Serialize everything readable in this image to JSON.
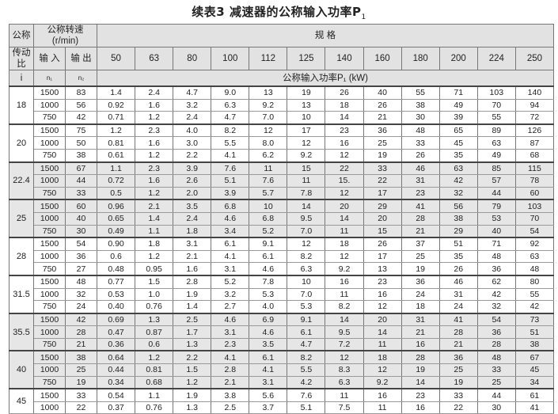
{
  "title": {
    "text": "续表3  减速器的公称输入功率P",
    "sub": "1"
  },
  "header": {
    "ratio_label_1": "公称",
    "ratio_label_2": "传动比",
    "ratio_label_3": "i",
    "speed_label": "公称转速(r/min)",
    "input_label": "输 入",
    "output_label": "输 出",
    "n1": "n₁",
    "n2": "n₂",
    "spec_label": "规    格",
    "power_label": "公称输入功率P₁ (kW)",
    "sizes": [
      "50",
      "63",
      "80",
      "100",
      "112",
      "125",
      "140",
      "160",
      "180",
      "200",
      "224",
      "250"
    ]
  },
  "groups": [
    {
      "ratio": "18",
      "shaded": false,
      "rows": [
        {
          "n1": "1500",
          "n2": "83",
          "p": [
            "1.4",
            "2.4",
            "4.7",
            "9.0",
            "13",
            "19",
            "26",
            "40",
            "55",
            "71",
            "103",
            "140"
          ]
        },
        {
          "n1": "1000",
          "n2": "56",
          "p": [
            "0.92",
            "1.6",
            "3.2",
            "6.3",
            "9.2",
            "13",
            "18",
            "26",
            "38",
            "49",
            "70",
            "94"
          ]
        },
        {
          "n1": "750",
          "n2": "42",
          "p": [
            "0.71",
            "1.2",
            "2.4",
            "4.7",
            "7.0",
            "10",
            "14",
            "21",
            "30",
            "39",
            "55",
            "72"
          ]
        }
      ]
    },
    {
      "ratio": "20",
      "shaded": false,
      "rows": [
        {
          "n1": "1500",
          "n2": "75",
          "p": [
            "1.2",
            "2.3",
            "4.0",
            "8.2",
            "12",
            "17",
            "23",
            "36",
            "48",
            "65",
            "89",
            "126"
          ]
        },
        {
          "n1": "1000",
          "n2": "50",
          "p": [
            "0.81",
            "1.6",
            "3.0",
            "5.5",
            "8.0",
            "12",
            "16",
            "25",
            "33",
            "45",
            "63",
            "87"
          ]
        },
        {
          "n1": "750",
          "n2": "38",
          "p": [
            "0.61",
            "1.2",
            "2.2",
            "4.1",
            "6.2",
            "9.2",
            "12",
            "19",
            "26",
            "35",
            "49",
            "68"
          ]
        }
      ]
    },
    {
      "ratio": "22.4",
      "shaded": true,
      "rows": [
        {
          "n1": "1500",
          "n2": "67",
          "p": [
            "1.1",
            "2.3",
            "3.9",
            "7.6",
            "11",
            "15",
            "22",
            "33",
            "46",
            "63",
            "85",
            "115"
          ]
        },
        {
          "n1": "1000",
          "n2": "44",
          "p": [
            "0.72",
            "1.6",
            "2.6",
            "5.1",
            "7.6",
            "11",
            "15.",
            "22",
            "31",
            "42",
            "57",
            "78"
          ]
        },
        {
          "n1": "750",
          "n2": "33",
          "p": [
            "0.5",
            "1.2",
            "2.0",
            "3.9",
            "5.7",
            "7.8",
            "12",
            "17",
            "23",
            "32",
            "44",
            "60"
          ]
        }
      ]
    },
    {
      "ratio": "25",
      "shaded": true,
      "rows": [
        {
          "n1": "1500",
          "n2": "60",
          "p": [
            "0.96",
            "2.1",
            "3.5",
            "6.8",
            "10",
            "14",
            "20",
            "29",
            "41",
            "56",
            "79",
            "103"
          ]
        },
        {
          "n1": "1000",
          "n2": "40",
          "p": [
            "0.65",
            "1.4",
            "2.4",
            "4.6",
            "6.8",
            "9.5",
            "14",
            "20",
            "28",
            "38",
            "53",
            "70"
          ]
        },
        {
          "n1": "750",
          "n2": "30",
          "p": [
            "0.49",
            "1.1",
            "1.8",
            "3.4",
            "5.2",
            "7.0",
            "11",
            "15",
            "21",
            "29",
            "40",
            "54"
          ]
        }
      ]
    },
    {
      "ratio": "28",
      "shaded": false,
      "rows": [
        {
          "n1": "1500",
          "n2": "54",
          "p": [
            "0.90",
            "1.8",
            "3.1",
            "6.1",
            "9.1",
            "12",
            "18",
            "26",
            "37",
            "51",
            "71",
            "92"
          ]
        },
        {
          "n1": "1000",
          "n2": "36",
          "p": [
            "0.6",
            "1.2",
            "2.1",
            "4.1",
            "6.1",
            "8.2",
            "12",
            "17",
            "25",
            "35",
            "48",
            "63"
          ]
        },
        {
          "n1": "750",
          "n2": "27",
          "p": [
            "0.48",
            "0.95",
            "1.6",
            "3.1",
            "4.6",
            "6.3",
            "9.2",
            "13",
            "19",
            "26",
            "36",
            "48"
          ]
        }
      ]
    },
    {
      "ratio": "31.5",
      "shaded": false,
      "rows": [
        {
          "n1": "1500",
          "n2": "48",
          "p": [
            "0.77",
            "1.5",
            "2.8",
            "5.2",
            "7.8",
            "10",
            "16",
            "23",
            "36",
            "46",
            "62",
            "80"
          ]
        },
        {
          "n1": "1000",
          "n2": "32",
          "p": [
            "0.53",
            "1.0",
            "1.9",
            "3.2",
            "5.3",
            "7.0",
            "11",
            "16",
            "24",
            "31",
            "42",
            "55"
          ]
        },
        {
          "n1": "750",
          "n2": "24",
          "p": [
            "0.40",
            "0.76",
            "1.4",
            "2.7",
            "4.0",
            "5.3",
            "8.2",
            "12",
            "18",
            "24",
            "32",
            "42"
          ]
        }
      ]
    },
    {
      "ratio": "35.5",
      "shaded": true,
      "rows": [
        {
          "n1": "1500",
          "n2": "42",
          "p": [
            "0.69",
            "1.3",
            "2.5",
            "4.6",
            "6.9",
            "9.1",
            "14",
            "20",
            "31",
            "41",
            "54",
            "73"
          ]
        },
        {
          "n1": "1000",
          "n2": "28",
          "p": [
            "0.47",
            "0.87",
            "1.7",
            "3.1",
            "4.6",
            "6.1",
            "9.5",
            "14",
            "21",
            "28",
            "36",
            "51"
          ]
        },
        {
          "n1": "750",
          "n2": "21",
          "p": [
            "0.36",
            "0.6",
            "1.3",
            "2.3",
            "3.5",
            "4.7",
            "7.2",
            "11",
            "16",
            "21",
            "28",
            "38"
          ]
        }
      ]
    },
    {
      "ratio": "40",
      "shaded": true,
      "rows": [
        {
          "n1": "1500",
          "n2": "38",
          "p": [
            "0.64",
            "1.2",
            "2.2",
            "4.1",
            "6.1",
            "8.2",
            "12",
            "18",
            "28",
            "36",
            "48",
            "67"
          ]
        },
        {
          "n1": "1000",
          "n2": "25",
          "p": [
            "0.44",
            "0.81",
            "1.5",
            "2.8",
            "4.1",
            "5.5",
            "8.3",
            "12",
            "19",
            "25",
            "33",
            "45"
          ]
        },
        {
          "n1": "750",
          "n2": "19",
          "p": [
            "0.34",
            "0.68",
            "1.2",
            "2.1",
            "3.1",
            "4.2",
            "6.3",
            "9.2",
            "14",
            "19",
            "25",
            "34"
          ]
        }
      ]
    },
    {
      "ratio": "45",
      "shaded": false,
      "rows": [
        {
          "n1": "1500",
          "n2": "33",
          "p": [
            "0.54",
            "1.1",
            "1.9",
            "3.8",
            "5.6",
            "7.6",
            "11",
            "16",
            "23",
            "33",
            "44",
            "61"
          ]
        },
        {
          "n1": "1000",
          "n2": "22",
          "p": [
            "0.37",
            "0.76",
            "1.3",
            "2.5",
            "3.7",
            "5.1",
            "7.5",
            "11",
            "16",
            "22",
            "30",
            "41"
          ]
        }
      ]
    }
  ]
}
